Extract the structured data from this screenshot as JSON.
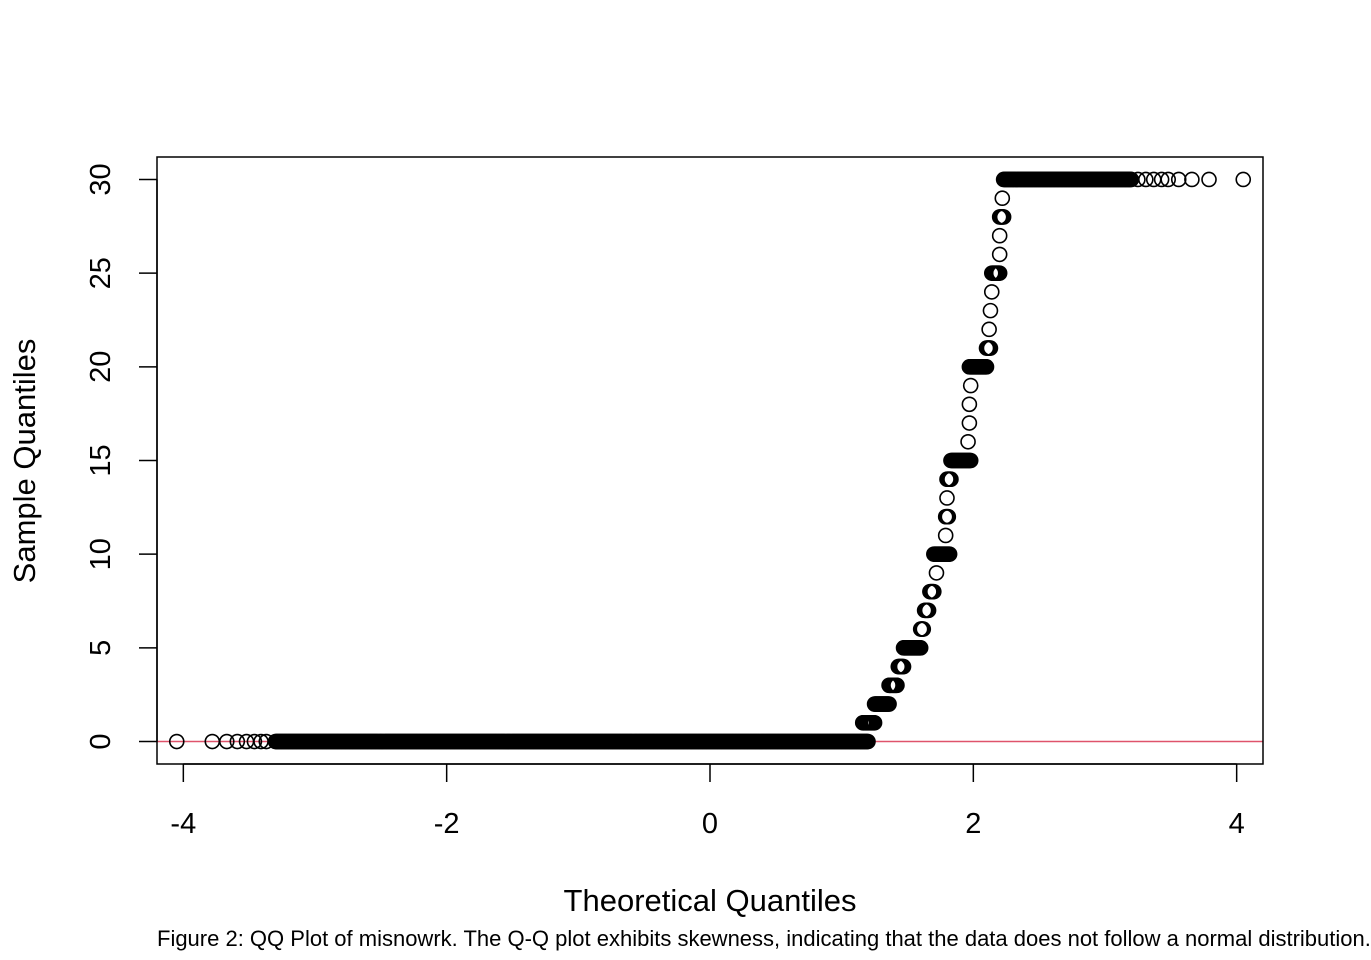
{
  "chart_data": {
    "type": "scatter",
    "title": "",
    "xlabel": "Theoretical Quantiles",
    "ylabel": "Sample Quantiles",
    "xlim": [
      -4.2,
      4.2
    ],
    "ylim": [
      -1.2,
      31.2
    ],
    "x_ticks": [
      -4,
      -2,
      0,
      2,
      4
    ],
    "y_ticks": [
      0,
      5,
      10,
      15,
      20,
      25,
      30
    ],
    "x_tick_labels": [
      "-4",
      "-2",
      "0",
      "2",
      "4"
    ],
    "y_tick_labels": [
      "0",
      "5",
      "10",
      "15",
      "20",
      "25",
      "30"
    ],
    "reference_line": {
      "orientation": "horizontal",
      "y": 0,
      "color": "#DF536B"
    },
    "point_style": {
      "shape": "open-circle",
      "color": "#000000"
    },
    "series": [
      {
        "runs": [
          {
            "y": 0,
            "x_from": -3.3,
            "x_to": 1.2
          },
          {
            "y": 1,
            "x_from": 1.16,
            "x_to": 1.25
          },
          {
            "y": 2,
            "x_from": 1.25,
            "x_to": 1.36
          },
          {
            "y": 3,
            "x_from": 1.36,
            "x_to": 1.42
          },
          {
            "y": 4,
            "x_from": 1.43,
            "x_to": 1.47
          },
          {
            "y": 5,
            "x_from": 1.47,
            "x_to": 1.6
          },
          {
            "y": 6,
            "x_from": 1.6,
            "x_to": 1.62
          },
          {
            "y": 7,
            "x_from": 1.63,
            "x_to": 1.66
          },
          {
            "y": 8,
            "x_from": 1.67,
            "x_to": 1.7
          },
          {
            "y": 10,
            "x_from": 1.7,
            "x_to": 1.82
          },
          {
            "y": 12,
            "x_from": 1.79,
            "x_to": 1.81
          },
          {
            "y": 14,
            "x_from": 1.8,
            "x_to": 1.83
          },
          {
            "y": 15,
            "x_from": 1.83,
            "x_to": 1.98
          },
          {
            "y": 20,
            "x_from": 1.97,
            "x_to": 2.1
          },
          {
            "y": 21,
            "x_from": 2.1,
            "x_to": 2.13
          },
          {
            "y": 25,
            "x_from": 2.14,
            "x_to": 2.2
          },
          {
            "y": 28,
            "x_from": 2.2,
            "x_to": 2.23
          },
          {
            "y": 30,
            "x_from": 2.23,
            "x_to": 3.2
          }
        ],
        "points": [
          [
            -4.05,
            0
          ],
          [
            -3.78,
            0
          ],
          [
            -3.67,
            0
          ],
          [
            -3.59,
            0
          ],
          [
            -3.52,
            0
          ],
          [
            -3.46,
            0
          ],
          [
            -3.41,
            0
          ],
          [
            -3.37,
            0
          ],
          [
            1.72,
            9
          ],
          [
            1.79,
            11
          ],
          [
            1.8,
            13
          ],
          [
            1.96,
            16
          ],
          [
            1.97,
            17
          ],
          [
            1.97,
            18
          ],
          [
            1.98,
            19
          ],
          [
            2.12,
            22
          ],
          [
            2.13,
            23
          ],
          [
            2.14,
            24
          ],
          [
            2.2,
            26
          ],
          [
            2.2,
            27
          ],
          [
            2.22,
            29
          ],
          [
            3.25,
            30
          ],
          [
            3.31,
            30
          ],
          [
            3.37,
            30
          ],
          [
            3.43,
            30
          ],
          [
            3.48,
            30
          ],
          [
            3.56,
            30
          ],
          [
            3.66,
            30
          ],
          [
            3.79,
            30
          ],
          [
            4.05,
            30
          ]
        ]
      }
    ]
  },
  "caption": "Figure 2: QQ Plot of misnowrk. The Q-Q plot exhibits skewness, indicating that the data does not follow a normal distribution."
}
